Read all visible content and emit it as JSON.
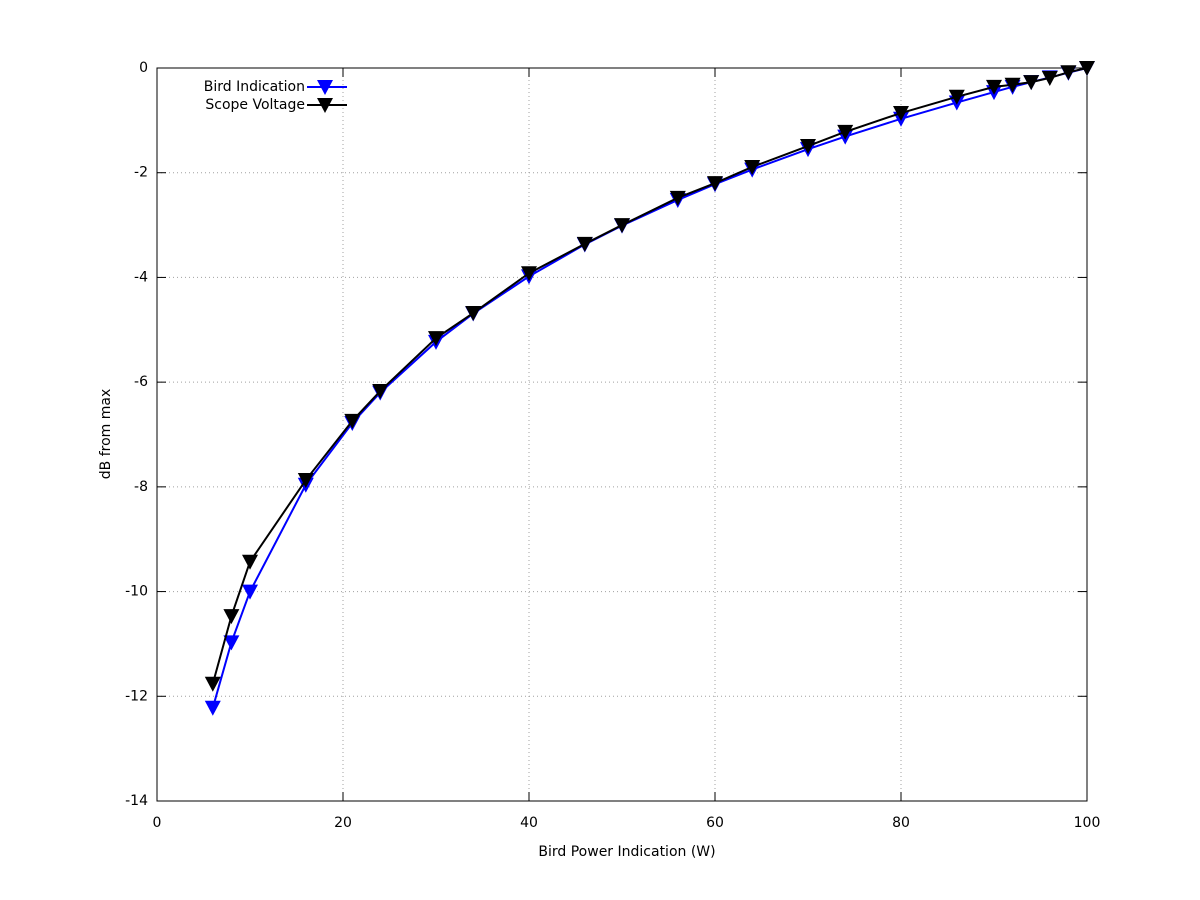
{
  "chart_data": {
    "type": "line",
    "xlabel": "Bird Power Indication (W)",
    "ylabel": "dB from max",
    "x": [
      6,
      8,
      10,
      16,
      21,
      24,
      30,
      34,
      40,
      46,
      50,
      56,
      60,
      64,
      70,
      74,
      80,
      86,
      90,
      92,
      94,
      96,
      98,
      100
    ],
    "series": [
      {
        "name": "Bird Indication",
        "color": "#0000ff",
        "values": [
          -12.22,
          -10.97,
          -10.0,
          -7.96,
          -6.78,
          -6.2,
          -5.23,
          -4.69,
          -3.98,
          -3.37,
          -3.01,
          -2.52,
          -2.22,
          -1.94,
          -1.55,
          -1.31,
          -0.97,
          -0.66,
          -0.46,
          -0.36,
          -0.27,
          -0.18,
          -0.09,
          0
        ]
      },
      {
        "name": "Scope Voltage",
        "color": "#000000",
        "values": [
          -11.76,
          -10.47,
          -9.43,
          -7.87,
          -6.74,
          -6.17,
          -5.16,
          -4.68,
          -3.92,
          -3.36,
          -3.0,
          -2.48,
          -2.2,
          -1.89,
          -1.49,
          -1.22,
          -0.86,
          -0.55,
          -0.36,
          -0.32,
          -0.27,
          -0.19,
          -0.08,
          0
        ]
      }
    ],
    "xlim": [
      0,
      100
    ],
    "xticks": [
      0,
      20,
      40,
      60,
      80,
      100
    ],
    "ylim": [
      -14,
      0
    ],
    "yticks": [
      -14,
      -12,
      -10,
      -8,
      -6,
      -4,
      -2,
      0
    ],
    "grid": true,
    "legend": "top-left"
  }
}
